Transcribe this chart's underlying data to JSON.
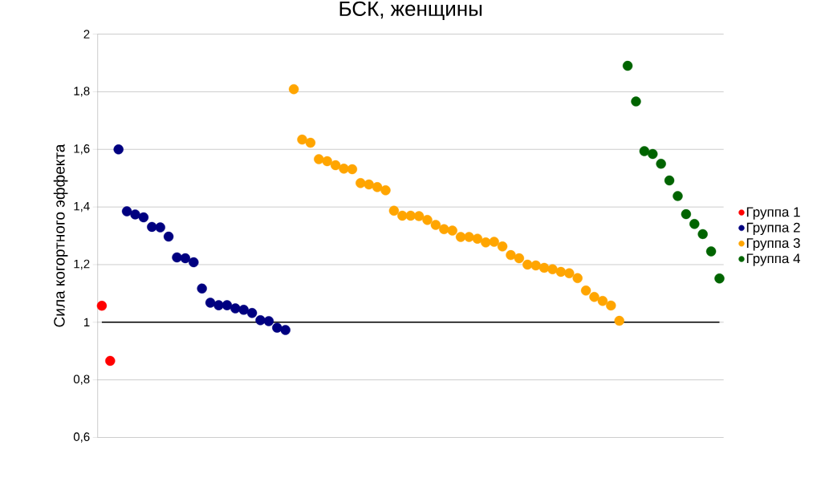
{
  "chart_data": {
    "type": "scatter",
    "title": "БСК, женщины",
    "ylabel": "Сила когортного эффекта",
    "categories": [
      null,
      null,
      null,
      null,
      null,
      null,
      null,
      null,
      null,
      null,
      null,
      null,
      null,
      null,
      null,
      null,
      null,
      null,
      null,
      null,
      null,
      null,
      null,
      null,
      null,
      null,
      null,
      null,
      null,
      null,
      null,
      null,
      null,
      null,
      null,
      null,
      null,
      null,
      null,
      null,
      null,
      null,
      null,
      null,
      null,
      null,
      null,
      null,
      null,
      null,
      null,
      null,
      null,
      null,
      null,
      null,
      null,
      null,
      null,
      null,
      null,
      null,
      null,
      null,
      null,
      null,
      null,
      null,
      null,
      null,
      null,
      null,
      null,
      null,
      null
    ],
    "series": [
      {
        "name": "Группа 1",
        "color": "#ff0000",
        "values": [
          1.057,
          0.866,
          null,
          null,
          null,
          null,
          null,
          null,
          null,
          null,
          null,
          null,
          null,
          null,
          null,
          null,
          null,
          null,
          null,
          null,
          null,
          null,
          null,
          null,
          null,
          null,
          null,
          null,
          null,
          null,
          null,
          null,
          null,
          null,
          null,
          null,
          null,
          null,
          null,
          null,
          null,
          null,
          null,
          null,
          null,
          null,
          null,
          null,
          null,
          null,
          null,
          null,
          null,
          null,
          null,
          null,
          null,
          null,
          null,
          null,
          null,
          null,
          null,
          null,
          null,
          null,
          null,
          null,
          null,
          null,
          null,
          null,
          null,
          null,
          null
        ]
      },
      {
        "name": "Группа 2",
        "color": "#000080",
        "values": [
          null,
          null,
          1.6,
          1.385,
          1.374,
          1.364,
          1.331,
          1.329,
          1.297,
          1.225,
          1.222,
          1.208,
          1.117,
          1.068,
          1.059,
          1.059,
          1.048,
          1.043,
          1.032,
          1.007,
          1.004,
          0.981,
          0.973,
          null,
          null,
          null,
          null,
          null,
          null,
          null,
          null,
          null,
          null,
          null,
          null,
          null,
          null,
          null,
          null,
          null,
          null,
          null,
          null,
          null,
          null,
          null,
          null,
          null,
          null,
          null,
          null,
          null,
          null,
          null,
          null,
          null,
          null,
          null,
          null,
          null,
          null,
          null,
          null,
          null,
          null,
          null,
          null,
          null,
          null,
          null,
          null,
          null,
          null,
          null,
          null
        ]
      },
      {
        "name": "Группа 3",
        "color": "#ffa500",
        "values": [
          null,
          null,
          null,
          null,
          null,
          null,
          null,
          null,
          null,
          null,
          null,
          null,
          null,
          null,
          null,
          null,
          null,
          null,
          null,
          null,
          null,
          null,
          null,
          1.809,
          1.634,
          1.623,
          1.566,
          1.559,
          1.545,
          1.533,
          1.531,
          1.483,
          1.478,
          1.469,
          1.458,
          1.387,
          1.37,
          1.37,
          1.368,
          1.355,
          1.338,
          1.323,
          1.318,
          1.296,
          1.296,
          1.29,
          1.277,
          1.279,
          1.263,
          1.233,
          1.222,
          1.2,
          1.197,
          1.189,
          1.184,
          1.175,
          1.17,
          1.153,
          1.11,
          1.088,
          1.074,
          1.058,
          1.005,
          null,
          null,
          null,
          null,
          null,
          null,
          null,
          null,
          null,
          null,
          null,
          null
        ]
      },
      {
        "name": "Группа 4",
        "color": "#006400",
        "values": [
          null,
          null,
          null,
          null,
          null,
          null,
          null,
          null,
          null,
          null,
          null,
          null,
          null,
          null,
          null,
          null,
          null,
          null,
          null,
          null,
          null,
          null,
          null,
          null,
          null,
          null,
          null,
          null,
          null,
          null,
          null,
          null,
          null,
          null,
          null,
          null,
          null,
          null,
          null,
          null,
          null,
          null,
          null,
          null,
          null,
          null,
          null,
          null,
          null,
          null,
          null,
          null,
          null,
          null,
          null,
          null,
          null,
          null,
          null,
          null,
          null,
          null,
          null,
          1.89,
          1.766,
          1.594,
          1.584,
          1.55,
          1.492,
          1.438,
          1.375,
          1.341,
          1.306,
          1.246,
          1.152
        ]
      }
    ],
    "ylim": [
      0.6,
      2
    ],
    "yticks": [
      {
        "value": 0.6,
        "label": "0,6"
      },
      {
        "value": 0.8,
        "label": "0,8"
      },
      1,
      {
        "value": 1.2,
        "label": "1,2"
      },
      {
        "value": 1.4,
        "label": "1,4"
      },
      {
        "value": 1.6,
        "label": "1,6"
      },
      {
        "value": 1.8,
        "label": "1,8"
      },
      2
    ],
    "ref_lines": [
      {
        "axis": "y",
        "value": 1,
        "color": "#000000"
      }
    ],
    "grid": "y",
    "legend": "right",
    "tick_labels": "y",
    "marker": "circle"
  }
}
